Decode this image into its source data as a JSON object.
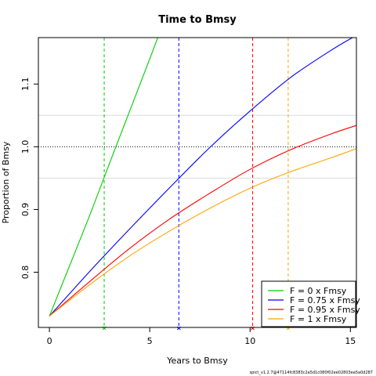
{
  "chart_data": {
    "type": "line",
    "title": "Time to Bmsy",
    "xlabel": "Years to Bmsy",
    "ylabel": "Proportion of Bmsy",
    "xlim": [
      -0.55,
      15.3
    ],
    "ylim": [
      0.712,
      1.174
    ],
    "x_ticks": [
      0,
      5,
      10,
      15
    ],
    "y_ticks": [
      0.8,
      0.9,
      1.0,
      1.1
    ],
    "x_tick_labels": [
      "0",
      "5",
      "10",
      "15"
    ],
    "y_tick_labels": [
      "0.8",
      "0.9",
      "1.0",
      "1.1"
    ],
    "reference_line_y": 1.0,
    "background_lines_y": [
      0.95,
      1.05
    ],
    "legend_position": "bottom-right",
    "series": [
      {
        "name": "F = 0 x Fmsy",
        "color": "#00cd00",
        "x": [
          0,
          1,
          2,
          3,
          4,
          5,
          5.4
        ],
        "y": [
          0.73,
          0.81,
          0.89,
          0.974,
          1.057,
          1.14,
          1.174
        ],
        "time_to_bmsy": 2.73
      },
      {
        "name": "F = 0.75 x Fmsy",
        "color": "#0000ff",
        "x": [
          0,
          2,
          4,
          6,
          8,
          10,
          12,
          14,
          15.1
        ],
        "y": [
          0.73,
          0.801,
          0.869,
          0.935,
          0.999,
          1.057,
          1.11,
          1.153,
          1.174
        ],
        "time_to_bmsy": 6.45
      },
      {
        "name": "F = 0.95 x Fmsy",
        "color": "#ff0000",
        "x": [
          0,
          2,
          4,
          6,
          8,
          10,
          12,
          14,
          15.3
        ],
        "y": [
          0.73,
          0.785,
          0.838,
          0.885,
          0.926,
          0.964,
          0.995,
          1.02,
          1.034
        ],
        "time_to_bmsy": 10.13
      },
      {
        "name": "F = 1 x Fmsy",
        "color": "#ffa500",
        "x": [
          0,
          2,
          4,
          6,
          8,
          10,
          12,
          14,
          15.3
        ],
        "y": [
          0.73,
          0.78,
          0.826,
          0.866,
          0.902,
          0.934,
          0.96,
          0.982,
          0.997
        ],
        "time_to_bmsy": 11.9
      }
    ]
  },
  "footnote": "spict_v1.2.7@47114fc8383c2a5d1c080f02ee02803ea5a0d287"
}
